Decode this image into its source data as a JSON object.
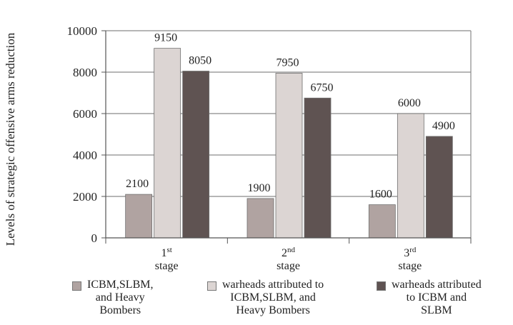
{
  "chart_data": {
    "type": "bar",
    "ylabel": "Levels of strategic offensive arms reduction",
    "xlabel": "",
    "ylim": [
      0,
      10000
    ],
    "yticks": [
      0,
      2000,
      4000,
      6000,
      8000,
      10000
    ],
    "grid": true,
    "legend_position": "bottom",
    "categories": [
      {
        "main": "1",
        "sup": "st",
        "sub": "stage"
      },
      {
        "main": "2",
        "sup": "nd",
        "sub": "stage"
      },
      {
        "main": "3",
        "sup": "rd",
        "sub": "stage"
      }
    ],
    "series": [
      {
        "name": "ICBM,SLBM,\nand Heavy\nBombers",
        "color": "#b0a3a1",
        "values": [
          2100,
          1900,
          1600
        ]
      },
      {
        "name": "warheads attributed to\nICBM,SLBM, and\nHeavy Bombers",
        "color": "#dcd5d3",
        "values": [
          9150,
          7950,
          6000
        ]
      },
      {
        "name": "warheads attributed\nto ICBM and\nSLBM",
        "color": "#5f5352",
        "values": [
          8050,
          6750,
          4900
        ]
      }
    ]
  }
}
